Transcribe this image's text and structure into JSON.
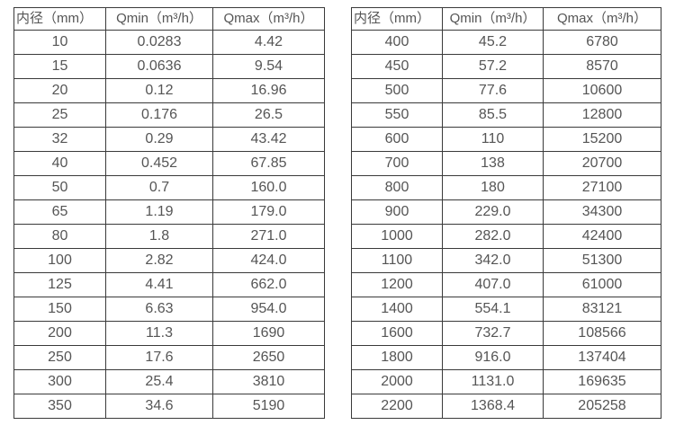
{
  "colors": {
    "background": "#ffffff",
    "border": "#3a3a3a",
    "text": "#555555"
  },
  "tables": [
    {
      "name": "flow-table-small-diameters",
      "headers": [
        "内径（mm）",
        "Qmin（m³/h）",
        "Qmax（m³/h）"
      ],
      "rows": [
        [
          "10",
          "0.0283",
          "4.42"
        ],
        [
          "15",
          "0.0636",
          "9.54"
        ],
        [
          "20",
          "0.12",
          "16.96"
        ],
        [
          "25",
          "0.176",
          "26.5"
        ],
        [
          "32",
          "0.29",
          "43.42"
        ],
        [
          "40",
          "0.452",
          "67.85"
        ],
        [
          "50",
          "0.7",
          "160.0"
        ],
        [
          "65",
          "1.19",
          "179.0"
        ],
        [
          "80",
          "1.8",
          "271.0"
        ],
        [
          "100",
          "2.82",
          "424.0"
        ],
        [
          "125",
          "4.41",
          "662.0"
        ],
        [
          "150",
          "6.63",
          "954.0"
        ],
        [
          "200",
          "11.3",
          "1690"
        ],
        [
          "250",
          "17.6",
          "2650"
        ],
        [
          "300",
          "25.4",
          "3810"
        ],
        [
          "350",
          "34.6",
          "5190"
        ]
      ]
    },
    {
      "name": "flow-table-large-diameters",
      "headers": [
        "内径（mm）",
        "Qmin（m³/h）",
        "Qmax（m³/h）"
      ],
      "rows": [
        [
          "400",
          "45.2",
          "6780"
        ],
        [
          "450",
          "57.2",
          "8570"
        ],
        [
          "500",
          "77.6",
          "10600"
        ],
        [
          "550",
          "85.5",
          "12800"
        ],
        [
          "600",
          "110",
          "15200"
        ],
        [
          "700",
          "138",
          "20700"
        ],
        [
          "800",
          "180",
          "27100"
        ],
        [
          "900",
          "229.0",
          "34300"
        ],
        [
          "1000",
          "282.0",
          "42400"
        ],
        [
          "1100",
          "342.0",
          "51300"
        ],
        [
          "1200",
          "407.0",
          "61000"
        ],
        [
          "1400",
          "554.1",
          "83121"
        ],
        [
          "1600",
          "732.7",
          "108566"
        ],
        [
          "1800",
          "916.0",
          "137404"
        ],
        [
          "2000",
          "1131.0",
          "169635"
        ],
        [
          "2200",
          "1368.4",
          "205258"
        ]
      ]
    }
  ]
}
